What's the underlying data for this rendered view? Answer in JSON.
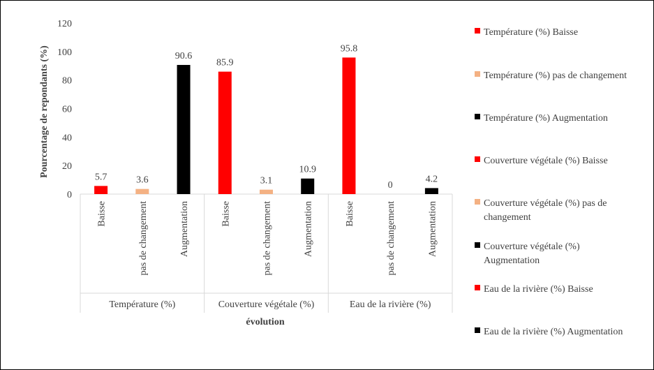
{
  "chart_data": {
    "type": "bar",
    "xlabel": "évolution",
    "ylabel": "Pourcentage de repondants (%)",
    "ylim": [
      0,
      120
    ],
    "yticks": [
      "0",
      "20",
      "40",
      "60",
      "80",
      "100",
      "120"
    ],
    "grid": false,
    "legend_position": "right",
    "groups": [
      {
        "name": "Température (%)",
        "categories": [
          "Baisse",
          "pas de changement",
          "Augmentation"
        ]
      },
      {
        "name": "Couverture végétale (%)",
        "categories": [
          "Baisse",
          "pas de changement",
          "Augmentation"
        ]
      },
      {
        "name": "Eau de la rivière (%)",
        "categories": [
          "Baisse",
          "pas de changement",
          "Augmentation"
        ]
      }
    ],
    "bars": [
      {
        "group": 0,
        "category": "Baisse",
        "value": 5.7,
        "label": "5.7",
        "color": "#ff0000"
      },
      {
        "group": 0,
        "category": "pas de changement",
        "value": 3.6,
        "label": "3.6",
        "color": "#f4b183"
      },
      {
        "group": 0,
        "category": "Augmentation",
        "value": 90.6,
        "label": "90.6",
        "color": "#000000"
      },
      {
        "group": 1,
        "category": "Baisse",
        "value": 85.9,
        "label": "85.9",
        "color": "#ff0000"
      },
      {
        "group": 1,
        "category": "pas de changement",
        "value": 3.1,
        "label": "3.1",
        "color": "#f4b183"
      },
      {
        "group": 1,
        "category": "Augmentation",
        "value": 10.9,
        "label": "10.9",
        "color": "#000000"
      },
      {
        "group": 2,
        "category": "Baisse",
        "value": 95.8,
        "label": "95.8",
        "color": "#ff0000"
      },
      {
        "group": 2,
        "category": "pas de changement",
        "value": 0,
        "label": "0",
        "color": "#f4b183"
      },
      {
        "group": 2,
        "category": "Augmentation",
        "value": 4.2,
        "label": "4.2",
        "color": "#000000"
      }
    ],
    "legend": [
      {
        "lines": [
          "Température (%) Baisse"
        ],
        "color": "#ff0000"
      },
      {
        "lines": [
          "Température (%) pas de changement"
        ],
        "color": "#f4b183"
      },
      {
        "lines": [
          "Température (%) Augmentation"
        ],
        "color": "#000000"
      },
      {
        "lines": [
          "Couverture végétale (%) Baisse"
        ],
        "color": "#ff0000"
      },
      {
        "lines": [
          "Couverture végétale (%) pas de",
          "changement"
        ],
        "color": "#f4b183"
      },
      {
        "lines": [
          "Couverture végétale (%)",
          "Augmentation"
        ],
        "color": "#000000"
      },
      {
        "lines": [
          "Eau de la rivière (%) Baisse"
        ],
        "color": "#ff0000"
      },
      {
        "lines": [
          "Eau de la rivière (%) Augmentation"
        ],
        "color": "#000000"
      }
    ]
  }
}
